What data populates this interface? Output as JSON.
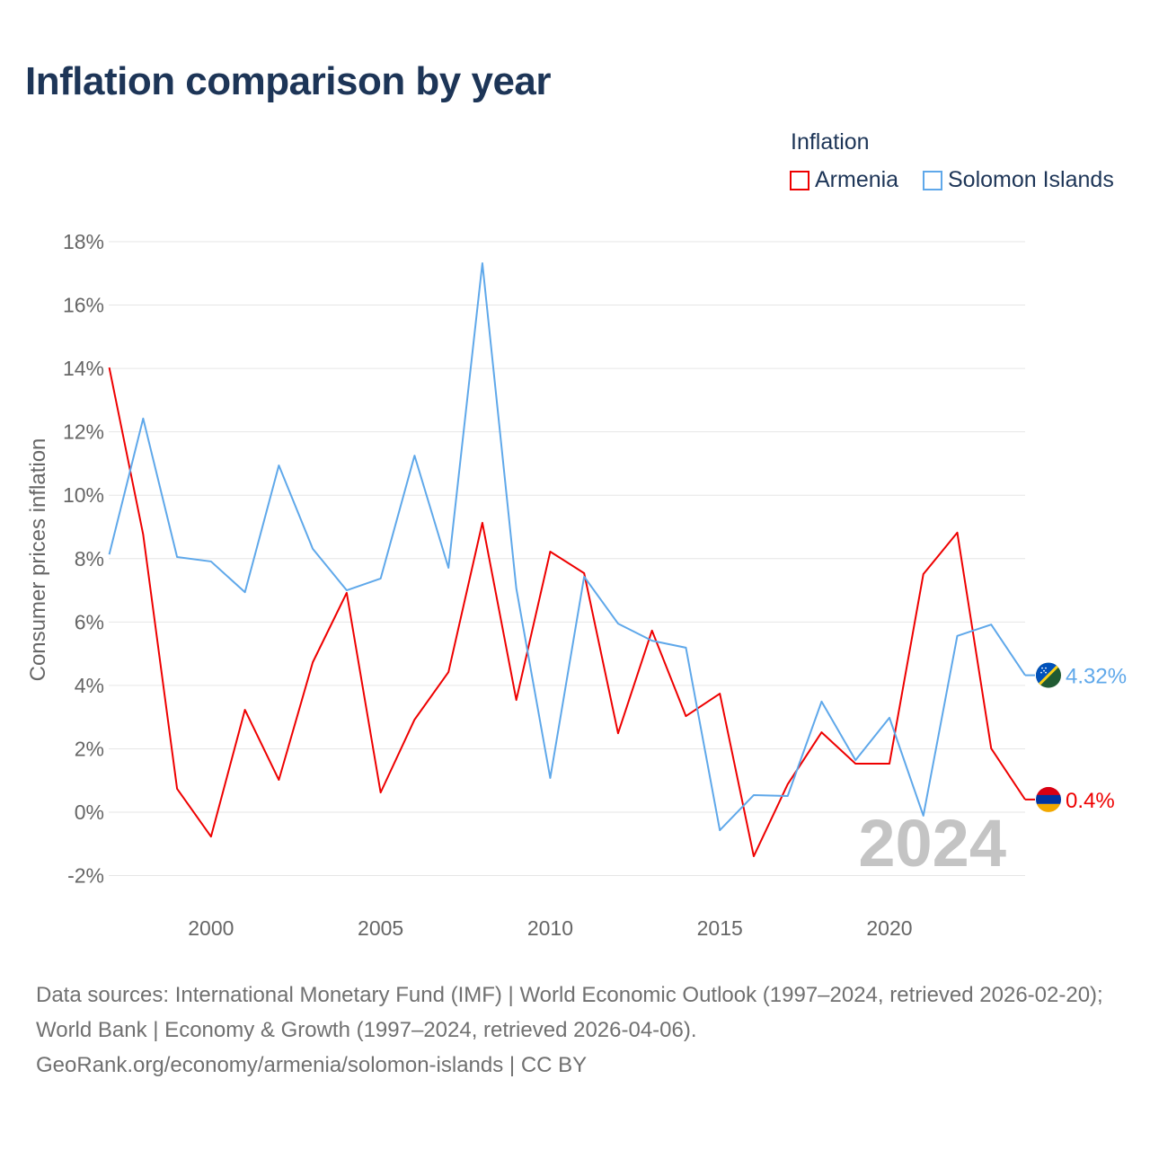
{
  "title": "Inflation comparison by year",
  "legend": {
    "title": "Inflation",
    "items": [
      "Armenia",
      "Solomon Islands"
    ]
  },
  "watermark_year": "2024",
  "footer": {
    "line1": "Data sources: International Monetary Fund (IMF) | World Economic Outlook (1997–2024, retrieved 2026-02-20); World Bank | Economy & Growth (1997–2024, retrieved 2026-04-06).",
    "line2": "GeoRank.org/economy/armenia/solomon-islands | CC BY"
  },
  "chart_data": {
    "type": "line",
    "title": "Inflation comparison by year",
    "xlabel": "",
    "ylabel": "Consumer prices inflation",
    "xlim": [
      1997,
      2024
    ],
    "ylim": [
      -2,
      18
    ],
    "yticks": [
      -2,
      0,
      2,
      4,
      6,
      8,
      10,
      12,
      14,
      16,
      18
    ],
    "ytick_labels": [
      "-2%",
      "0%",
      "2%",
      "4%",
      "6%",
      "8%",
      "10%",
      "12%",
      "14%",
      "16%",
      "18%"
    ],
    "xticks": [
      2000,
      2005,
      2010,
      2015,
      2020
    ],
    "xtick_labels": [
      "2000",
      "2005",
      "2010",
      "2015",
      "2020"
    ],
    "grid": "horizontal",
    "legend_position": "top-right",
    "x": [
      1997,
      1998,
      1999,
      2000,
      2001,
      2002,
      2003,
      2004,
      2005,
      2006,
      2007,
      2008,
      2009,
      2010,
      2011,
      2012,
      2013,
      2014,
      2015,
      2016,
      2017,
      2018,
      2019,
      2020,
      2021,
      2022,
      2023,
      2024
    ],
    "series": [
      {
        "name": "Armenia",
        "color": "#ee0000",
        "end_label": "0.4%",
        "values": [
          14.03,
          8.76,
          0.74,
          -0.77,
          3.23,
          1.02,
          4.73,
          6.92,
          0.62,
          2.92,
          4.42,
          9.13,
          3.54,
          8.22,
          7.54,
          2.49,
          5.73,
          3.03,
          3.74,
          -1.39,
          0.88,
          2.52,
          1.53,
          1.53,
          7.51,
          8.82,
          2.01,
          0.4
        ]
      },
      {
        "name": "Solomon Islands",
        "color": "#5fa8ea",
        "end_label": "4.32%",
        "values": [
          8.13,
          12.42,
          8.05,
          7.91,
          6.94,
          10.94,
          8.31,
          7.0,
          7.37,
          11.25,
          7.71,
          17.32,
          7.06,
          1.08,
          7.43,
          5.95,
          5.41,
          5.19,
          -0.57,
          0.54,
          0.51,
          3.49,
          1.64,
          2.98,
          -0.11,
          5.56,
          5.92,
          4.32
        ]
      }
    ]
  }
}
